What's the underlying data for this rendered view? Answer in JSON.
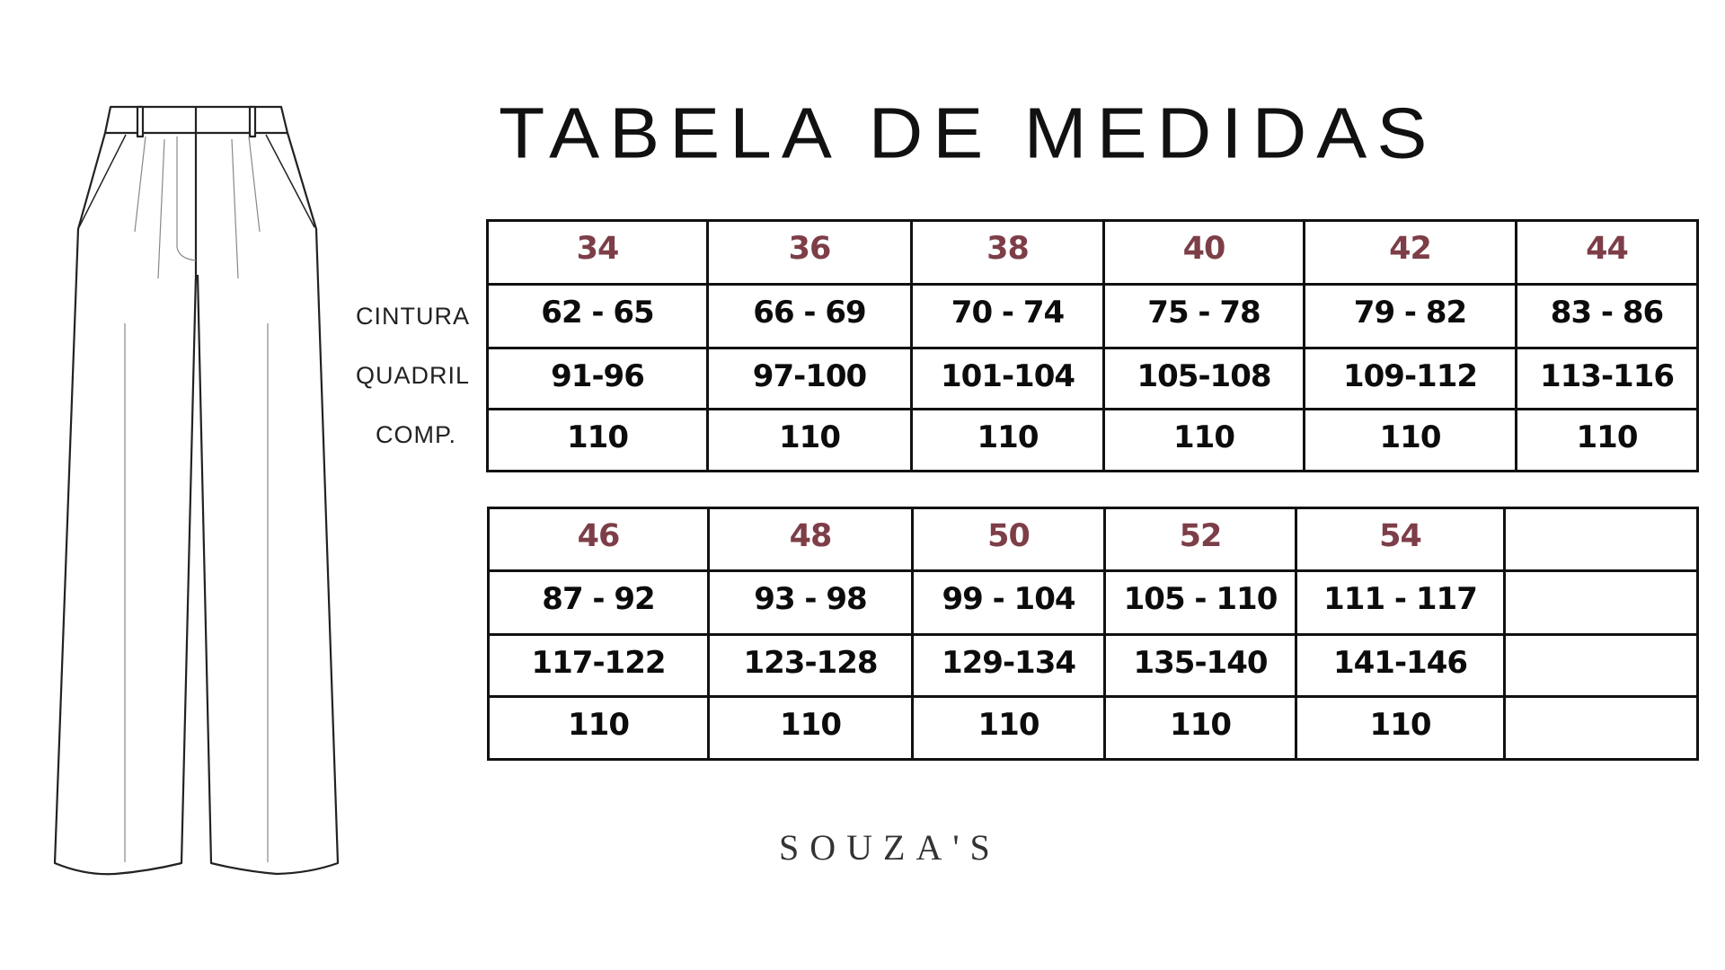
{
  "title": "TABELA DE MEDIDAS",
  "row_labels": [
    "CINTURA",
    "QUADRIL",
    "COMP."
  ],
  "header_color": "#7d3e48",
  "table1": {
    "sizes": [
      "34",
      "36",
      "38",
      "40",
      "42",
      "44"
    ],
    "cintura": [
      "62 - 65",
      "66 - 69",
      "70 - 74",
      "75 - 78",
      "79 - 82",
      "83 - 86"
    ],
    "quadril": [
      "91-96",
      "97-100",
      "101-104",
      "105-108",
      "109-112",
      "113-116"
    ],
    "comp": [
      "110",
      "110",
      "110",
      "110",
      "110",
      "110"
    ]
  },
  "table2": {
    "sizes": [
      "46",
      "48",
      "50",
      "52",
      "54",
      ""
    ],
    "cintura": [
      "87 - 92",
      "93 - 98",
      "99 - 104",
      "105 - 110",
      "111 - 117",
      ""
    ],
    "quadril": [
      "117-122",
      "123-128",
      "129-134",
      "135-140",
      "141-146",
      ""
    ],
    "comp": [
      "110",
      "110",
      "110",
      "110",
      "110",
      ""
    ]
  },
  "brand": "SOUZA'S",
  "illustration": "wide-leg-pants-flat-sketch"
}
